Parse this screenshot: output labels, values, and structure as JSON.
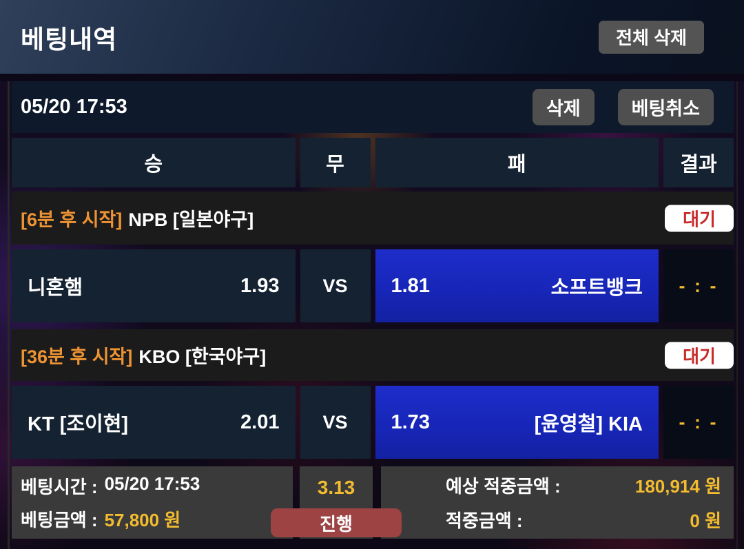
{
  "header": {
    "title": "베팅내역",
    "delete_all_label": "전체 삭제"
  },
  "bet_slip": {
    "placed_time": "05/20 17:53",
    "delete_label": "삭제",
    "cancel_label": "베팅취소",
    "columns": {
      "win": "승",
      "draw": "무",
      "lose": "패",
      "result": "결과"
    },
    "vs_label": "VS",
    "matches": [
      {
        "start_note": "[6분 후 시작]",
        "league": "NPB [일본야구]",
        "status": "대기",
        "home_name": "니혼햄",
        "home_odds": "1.93",
        "away_odds": "1.81",
        "away_name": "소프트뱅크",
        "score": "- : -"
      },
      {
        "start_note": "[36분 후 시작]",
        "league": "KBO [한국야구]",
        "status": "대기",
        "home_name": "KT [조이현]",
        "home_odds": "2.01",
        "away_odds": "1.73",
        "away_name": "[윤영철] KIA",
        "score": "- : -"
      }
    ],
    "summary": {
      "bet_time_label": "베팅시간 :",
      "bet_time": "05/20 17:53",
      "bet_amount_label": "베팅금액 :",
      "bet_amount": "57,800 원",
      "total_odds": "3.13",
      "status_label": "진행",
      "expected_win_label": "예상 적중금액 :",
      "expected_win": "180,914 원",
      "win_amount_label": "적중금액 :",
      "win_amount": "0 원"
    }
  },
  "colors": {
    "selected_bet_blue": "#1726b8",
    "gold_value": "#f3bc2f",
    "start_note_orange": "#ee9333",
    "badge_red": "#c92a2a",
    "progress_red": "#9d4344",
    "cell_navy": "#152231"
  }
}
